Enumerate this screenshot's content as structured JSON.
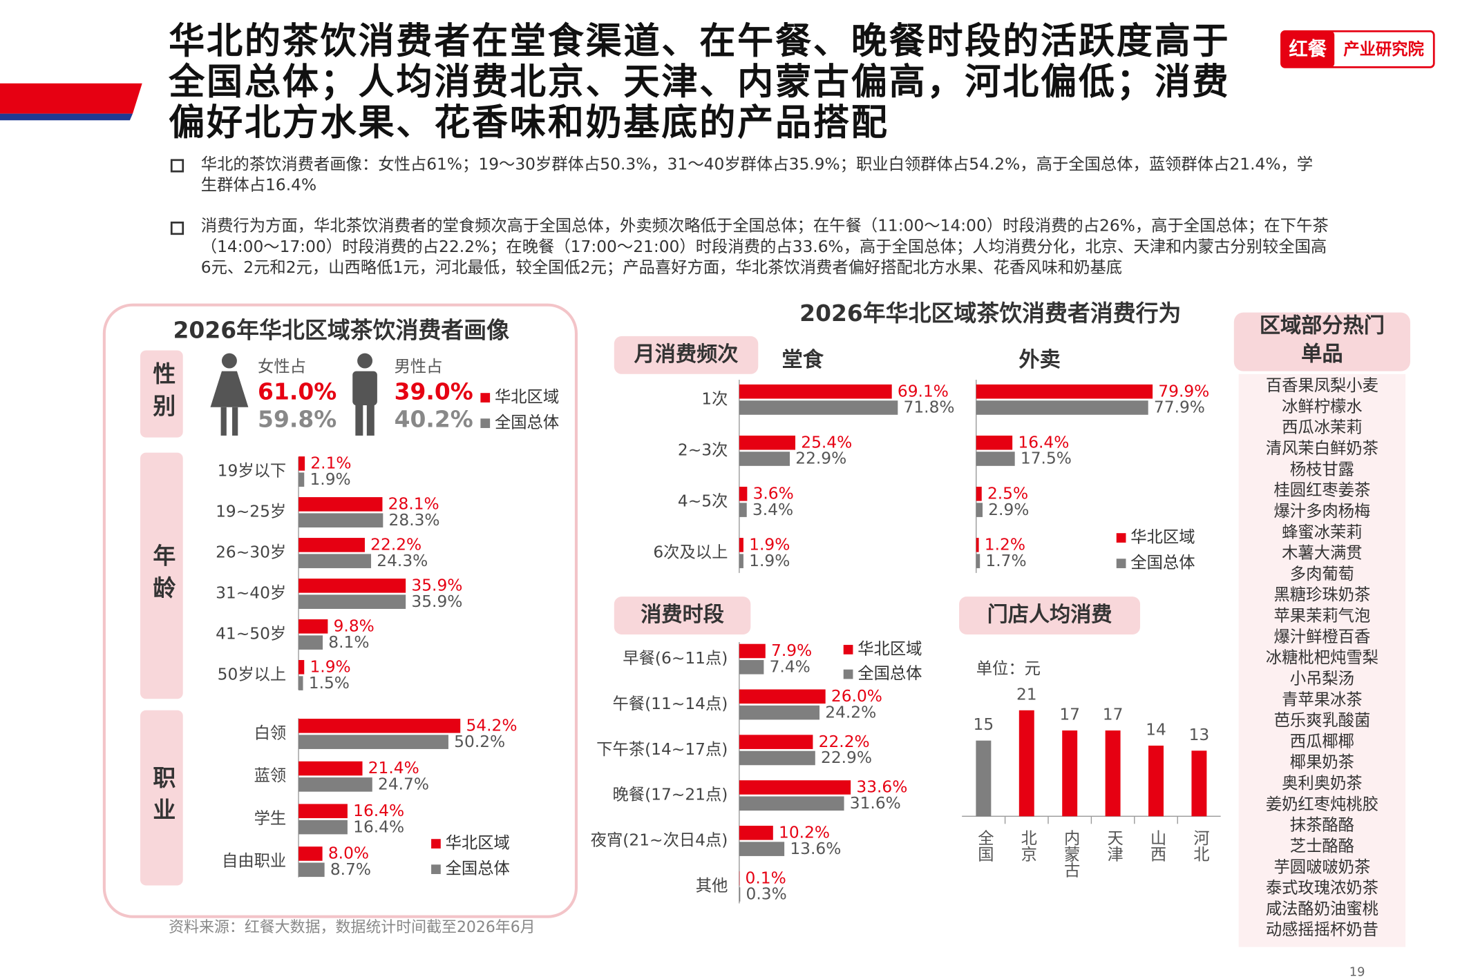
{
  "header": {
    "title": "华北的茶饮消费者在堂食渠道、在午餐、晚餐时段的活跃度高于全国总体；人均消费北京、天津、内蒙古偏高，河北偏低；消费偏好北方水果、花香味和奶基底的产品搭配",
    "logo_brand": "红餐",
    "logo_text": "产业研究院"
  },
  "bullets": [
    "华北的茶饮消费者画像：女性占61%；19～30岁群体占50.3%，31～40岁群体占35.9%；职业白领群体占54.2%，高于全国总体，蓝领群体占21.4%，学生群体占16.4%",
    "消费行为方面，华北茶饮消费者的堂食频次高于全国总体，外卖频次略低于全国总体；在午餐（11:00～14:00）时段消费的占26%，高于全国总体；在下午茶（14:00～17:00）时段消费的占22.2%；在晚餐（17:00～21:00）时段消费的占33.6%，高于全国总体；人均消费分化，北京、天津和内蒙古分别较全国高6元、2元和2元，山西略低1元，河北最低，较全国低2元；产品喜好方面，华北茶饮消费者偏好搭配北方水果、花香风味和奶基底"
  ],
  "portrait_title": "2026年华北区域茶饮消费者画像",
  "behavior_title": "2026年华北区域茶饮消费者消费行为",
  "chart_data": [
    {
      "type": "pictogram",
      "section": "性别",
      "categories": [
        "女性占",
        "男性占"
      ],
      "series": [
        {
          "name": "华北区域",
          "color": "#e60012",
          "values": [
            61.0,
            39.0
          ],
          "value_labels": [
            "61.0%",
            "39.0%"
          ]
        },
        {
          "name": "全国总体",
          "color": "#7f7f7f",
          "values": [
            59.8,
            40.2
          ],
          "value_labels": [
            "59.8%",
            "40.2%"
          ]
        }
      ]
    },
    {
      "type": "hbar",
      "section": "年龄",
      "categories": [
        "19岁以下",
        "19~25岁",
        "26~30岁",
        "31~40岁",
        "41~50岁",
        "50岁以上"
      ],
      "series": [
        {
          "color": "#e60012",
          "values": [
            2.1,
            28.1,
            22.2,
            35.9,
            9.8,
            1.9
          ],
          "value_labels": [
            "2.1%",
            "28.1%",
            "22.2%",
            "35.9%",
            "9.8%",
            "1.9%"
          ]
        },
        {
          "color": "#7f7f7f",
          "values": [
            1.9,
            28.3,
            24.3,
            35.9,
            8.1,
            1.5
          ],
          "value_labels": [
            "1.9%",
            "28.3%",
            "24.3%",
            "35.9%",
            "8.1%",
            "1.5%"
          ]
        }
      ]
    },
    {
      "type": "hbar",
      "section": "职业",
      "categories": [
        "白领",
        "蓝领",
        "学生",
        "自由职业"
      ],
      "series": [
        {
          "name": "华北区域",
          "color": "#e60012",
          "values": [
            54.2,
            21.4,
            16.4,
            8.0
          ],
          "value_labels": [
            "54.2%",
            "21.4%",
            "16.4%",
            "8.0%"
          ]
        },
        {
          "name": "全国总体",
          "color": "#7f7f7f",
          "values": [
            50.2,
            24.7,
            16.4,
            8.7
          ],
          "value_labels": [
            "50.2%",
            "24.7%",
            "16.4%",
            "8.7%"
          ]
        }
      ]
    },
    {
      "type": "hbar_panels",
      "section": "月消费频次",
      "panels": [
        "堂食",
        "外卖"
      ],
      "categories": [
        "1次",
        "2~3次",
        "4~5次",
        "6次及以上"
      ],
      "series": [
        {
          "name": "华北区域",
          "color": "#e60012",
          "values": [
            [
              69.1,
              25.4,
              3.6,
              1.9
            ],
            [
              79.9,
              16.4,
              2.5,
              1.2
            ]
          ],
          "value_labels": [
            [
              "69.1%",
              "25.4%",
              "3.6%",
              "1.9%"
            ],
            [
              "79.9%",
              "16.4%",
              "2.5%",
              "1.2%"
            ]
          ]
        },
        {
          "name": "全国总体",
          "color": "#7f7f7f",
          "values": [
            [
              71.8,
              22.9,
              3.4,
              1.9
            ],
            [
              77.9,
              17.5,
              2.9,
              1.7
            ]
          ],
          "value_labels": [
            [
              "71.8%",
              "22.9%",
              "3.4%",
              "1.9%"
            ],
            [
              "77.9%",
              "17.5%",
              "2.9%",
              "1.7%"
            ]
          ]
        }
      ]
    },
    {
      "type": "hbar",
      "section": "消费时段",
      "categories": [
        "早餐(6~11点)",
        "午餐(11~14点)",
        "下午茶(14~17点)",
        "晚餐(17~21点)",
        "夜宵(21~次日4点)",
        "其他"
      ],
      "series": [
        {
          "name": "华北区域",
          "color": "#e60012",
          "values": [
            7.9,
            26.0,
            22.2,
            33.6,
            10.2,
            0.1
          ],
          "value_labels": [
            "7.9%",
            "26.0%",
            "22.2%",
            "33.6%",
            "10.2%",
            "0.1%"
          ]
        },
        {
          "name": "全国总体",
          "color": "#7f7f7f",
          "values": [
            7.4,
            24.2,
            22.9,
            31.6,
            13.6,
            0.3
          ],
          "value_labels": [
            "7.4%",
            "24.2%",
            "22.9%",
            "31.6%",
            "13.6%",
            "0.3%"
          ]
        }
      ]
    },
    {
      "type": "bar",
      "section": "门店人均消费",
      "unit": "单位：元",
      "categories": [
        "全国",
        "北京",
        "内蒙古",
        "天津",
        "山西",
        "河北"
      ],
      "values": [
        15,
        21,
        17,
        17,
        14,
        13
      ],
      "colors": [
        "#7f7f7f",
        "#e60012",
        "#e60012",
        "#e60012",
        "#e60012",
        "#e60012"
      ]
    }
  ],
  "hot_items": {
    "title": "区域部分热门单品",
    "items": [
      "百香果凤梨小麦",
      "冰鲜柠檬水",
      "西瓜冰茉莉",
      "清风茉白鲜奶茶",
      "杨枝甘露",
      "桂圆红枣姜茶",
      "爆汁多肉杨梅",
      "蜂蜜冰茉莉",
      "木薯大满贯",
      "多肉葡萄",
      "黑糖珍珠奶茶",
      "苹果茉莉气泡",
      "爆汁鲜橙百香",
      "冰糖枇杷炖雪梨",
      "小吊梨汤",
      "青苹果冰茶",
      "芭乐爽乳酸菌",
      "西瓜椰椰",
      "椰果奶茶",
      "奥利奥奶茶",
      "姜奶红枣炖桃胶",
      "抹茶酪酪",
      "芝士酪酪",
      "芋圆啵啵奶茶",
      "泰式玫瑰浓奶茶",
      "咸法酪奶油蜜桃",
      "动感摇摇杯奶昔"
    ]
  },
  "footer": {
    "source": "资料来源：红餐大数据，数据统计时间截至2026年6月",
    "page": "19"
  }
}
